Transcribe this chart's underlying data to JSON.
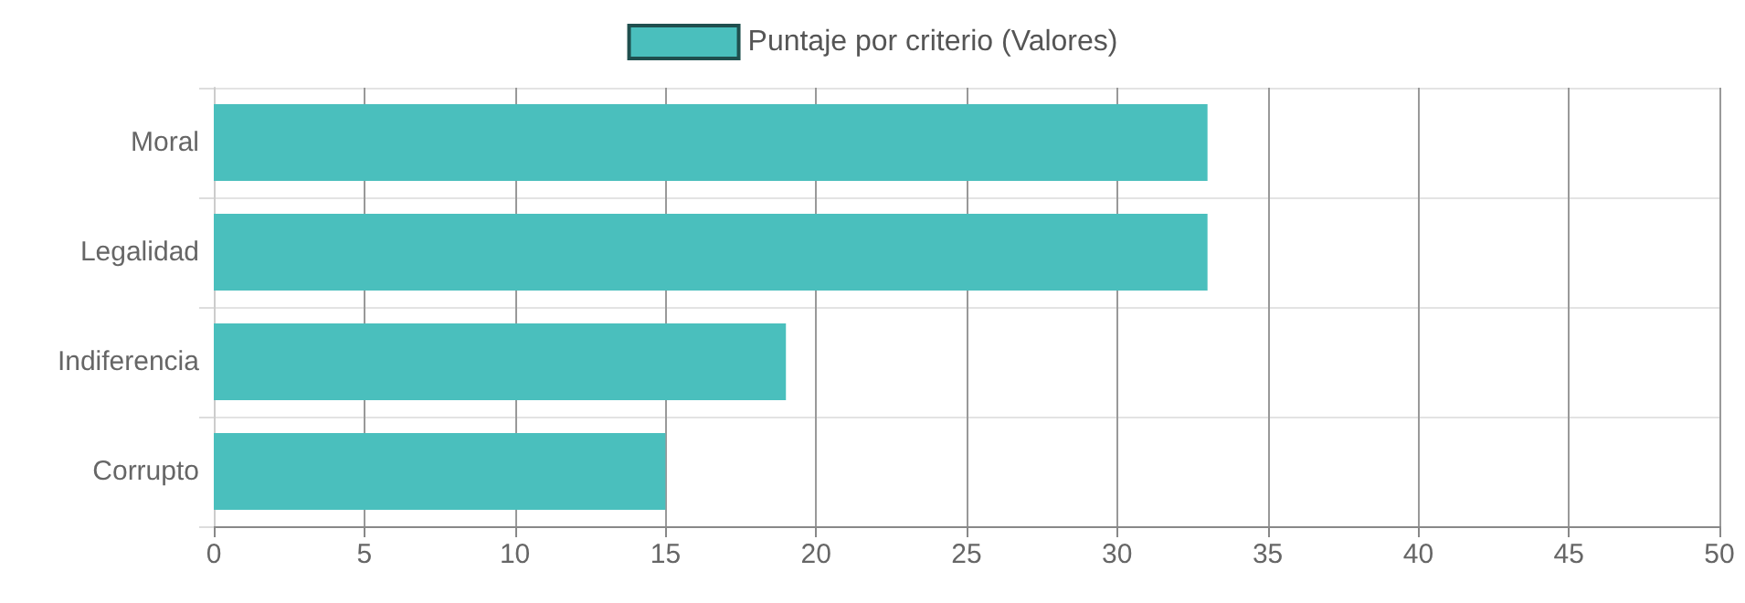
{
  "chart_data": {
    "type": "bar",
    "orientation": "horizontal",
    "categories": [
      "Moral",
      "Legalidad",
      "Indiferencia",
      "Corrupto"
    ],
    "series": [
      {
        "name": "Puntaje por criterio (Valores)",
        "color": "#4abfbd",
        "values": [
          33,
          33,
          19,
          15
        ]
      }
    ],
    "xlim": [
      0,
      50
    ],
    "xticks": [
      0,
      5,
      10,
      15,
      20,
      25,
      30,
      35,
      40,
      45,
      50
    ],
    "grid": true,
    "legend": "top"
  }
}
